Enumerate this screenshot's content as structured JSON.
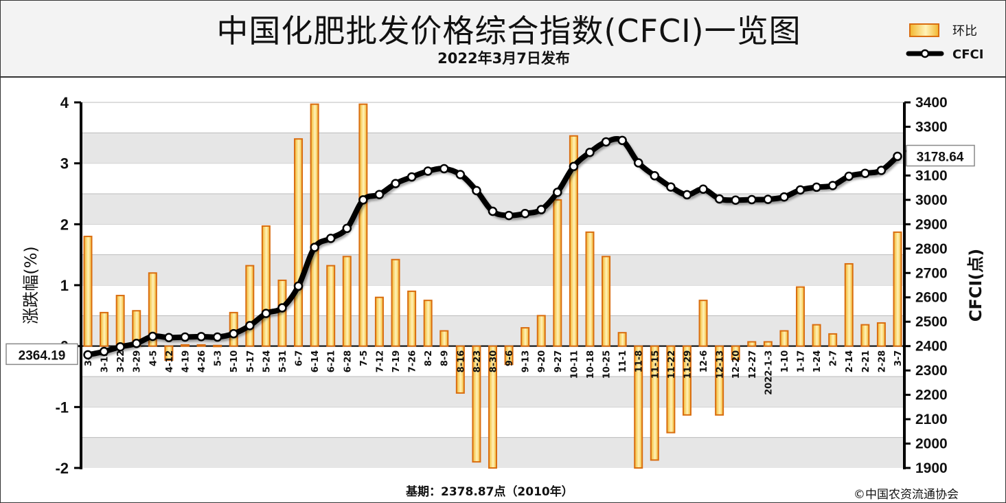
{
  "header": {
    "title": "中国化肥批发价格综合指数(CFCI)一览图",
    "subtitle": "2022年3月7日发布"
  },
  "legend": [
    {
      "label": "环比",
      "type": "bar"
    },
    {
      "label": "CFCI",
      "type": "line"
    }
  ],
  "footer": {
    "base_note": "基期：2378.87点（2010年）",
    "copyright": "©中国农资流通协会"
  },
  "colors": {
    "bar_fill_light": "#fff2b0",
    "bar_fill_dark": "#f0b030",
    "bar_stroke": "#d96d10",
    "line": "#000000",
    "grid_band": "#e6e6e6"
  },
  "chart_data": {
    "type": "bar+line",
    "categories": [
      "3-8",
      "3-15",
      "3-22",
      "3-29",
      "4-5",
      "4-12",
      "4-19",
      "4-26",
      "5-3",
      "5-10",
      "5-17",
      "5-24",
      "5-31",
      "6-7",
      "6-14",
      "6-21",
      "6-28",
      "7-5",
      "7-12",
      "7-19",
      "7-26",
      "8-2",
      "8-9",
      "8-16",
      "8-23",
      "8-30",
      "9-6",
      "9-13",
      "9-20",
      "9-27",
      "10-11",
      "10-18",
      "10-25",
      "11-1",
      "11-8",
      "11-15",
      "11-22",
      "11-29",
      "12-6",
      "12-13",
      "12-20",
      "12-27",
      "2022-1-3",
      "1-10",
      "1-17",
      "1-24",
      "2-7",
      "2-14",
      "2-21",
      "2-28",
      "3-7"
    ],
    "series": [
      {
        "name": "环比",
        "axis": "left",
        "values": [
          1.8,
          0.55,
          0.83,
          0.58,
          1.2,
          -0.23,
          0.02,
          0.02,
          0.01,
          0.55,
          1.32,
          1.97,
          1.08,
          3.4,
          3.97,
          1.32,
          1.47,
          3.97,
          0.8,
          1.42,
          0.9,
          0.75,
          0.25,
          -0.77,
          -1.9,
          -2.0,
          -0.3,
          0.3,
          0.5,
          2.4,
          3.45,
          1.87,
          1.47,
          0.22,
          -2.0,
          -1.87,
          -1.42,
          -1.13,
          0.75,
          -1.13,
          -0.22,
          0.07,
          0.07,
          0.25,
          0.97,
          0.35,
          0.2,
          1.35,
          0.35,
          0.38,
          1.87
        ]
      },
      {
        "name": "CFCI",
        "axis": "right",
        "values": [
          2364.19,
          2378,
          2397,
          2411,
          2440,
          2435,
          2437,
          2439,
          2437,
          2451,
          2484,
          2534,
          2557,
          2646,
          2805,
          2842,
          2883,
          3000,
          3022,
          3067,
          3094,
          3118,
          3128,
          3104,
          3038,
          2953,
          2936,
          2944,
          2960,
          3031,
          3137,
          3195,
          3238,
          3244,
          3152,
          3099,
          3053,
          3021,
          3044,
          3004,
          2999,
          3001,
          3002,
          3012,
          3041,
          3052,
          3059,
          3097,
          3109,
          3121,
          3178.64
        ]
      }
    ],
    "y_left": {
      "label": "涨跌幅(%)",
      "range": [
        -2,
        4
      ],
      "ticks": [
        "4",
        "3",
        "2",
        "1",
        "0",
        "-1",
        "-2"
      ]
    },
    "y_right": {
      "label": "CFCI(点)",
      "range": [
        1900,
        3400
      ],
      "ticks": [
        "3400",
        "3300",
        "3200",
        "3100",
        "3000",
        "2900",
        "2800",
        "2700",
        "2600",
        "2500",
        "2400",
        "2300",
        "2200",
        "2100",
        "2000",
        "1900"
      ]
    },
    "callouts": {
      "start": "2364.19",
      "end": "3178.64"
    },
    "grid": "horizontal bands",
    "legend_position": "top-right"
  }
}
